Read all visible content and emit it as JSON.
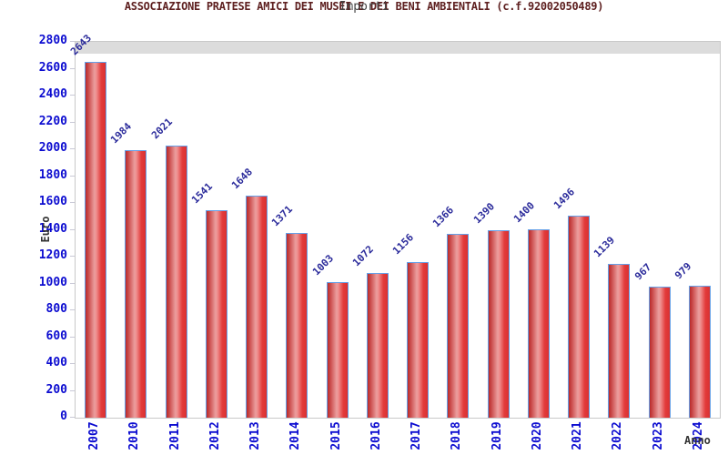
{
  "figure": {
    "title": "ASSOCIAZIONE PRATESE AMICI DEI MUSEI E DEI BENI AMBIENTALI (c.f.92002050489)",
    "subtitle": "Importi"
  },
  "chart_data": {
    "type": "bar",
    "title": "ASSOCIAZIONE PRATESE AMICI DEI MUSEI E DEI BENI AMBIENTALI (c.f.92002050489)",
    "subtitle": "Importi",
    "xlabel": "Anno",
    "ylabel": "Euro",
    "categories": [
      "2007",
      "2010",
      "2011",
      "2012",
      "2013",
      "2014",
      "2015",
      "2016",
      "2017",
      "2018",
      "2019",
      "2020",
      "2021",
      "2022",
      "2023",
      "2024"
    ],
    "values": [
      2643,
      1984,
      2021,
      1541,
      1648,
      1371,
      1003,
      1072,
      1156,
      1366,
      1390,
      1400,
      1496,
      1139,
      967,
      979
    ],
    "ylim": [
      0,
      2800
    ],
    "ytick_step": 200,
    "grid": true,
    "legend_position": "none",
    "value_labels_rotation_deg": -45,
    "x_labels_rotation_deg": -90,
    "colors": {
      "title": "#5e2020",
      "subtitle": "#444444",
      "axis_tick_label": "#0b0bd0",
      "value_label": "#2b2b9b",
      "axis_title": "#333333",
      "bar_border": "#64a0e8",
      "bar_fill_dark": "#b92a2a",
      "bar_fill_light": "#eb9e9e",
      "bar_fill_main": "#e23c3c",
      "band_gray": "#f2f2f2",
      "band_white": "#ffffff",
      "grid_line": "#dcdcdc",
      "frame": "#c9c9c9"
    }
  }
}
